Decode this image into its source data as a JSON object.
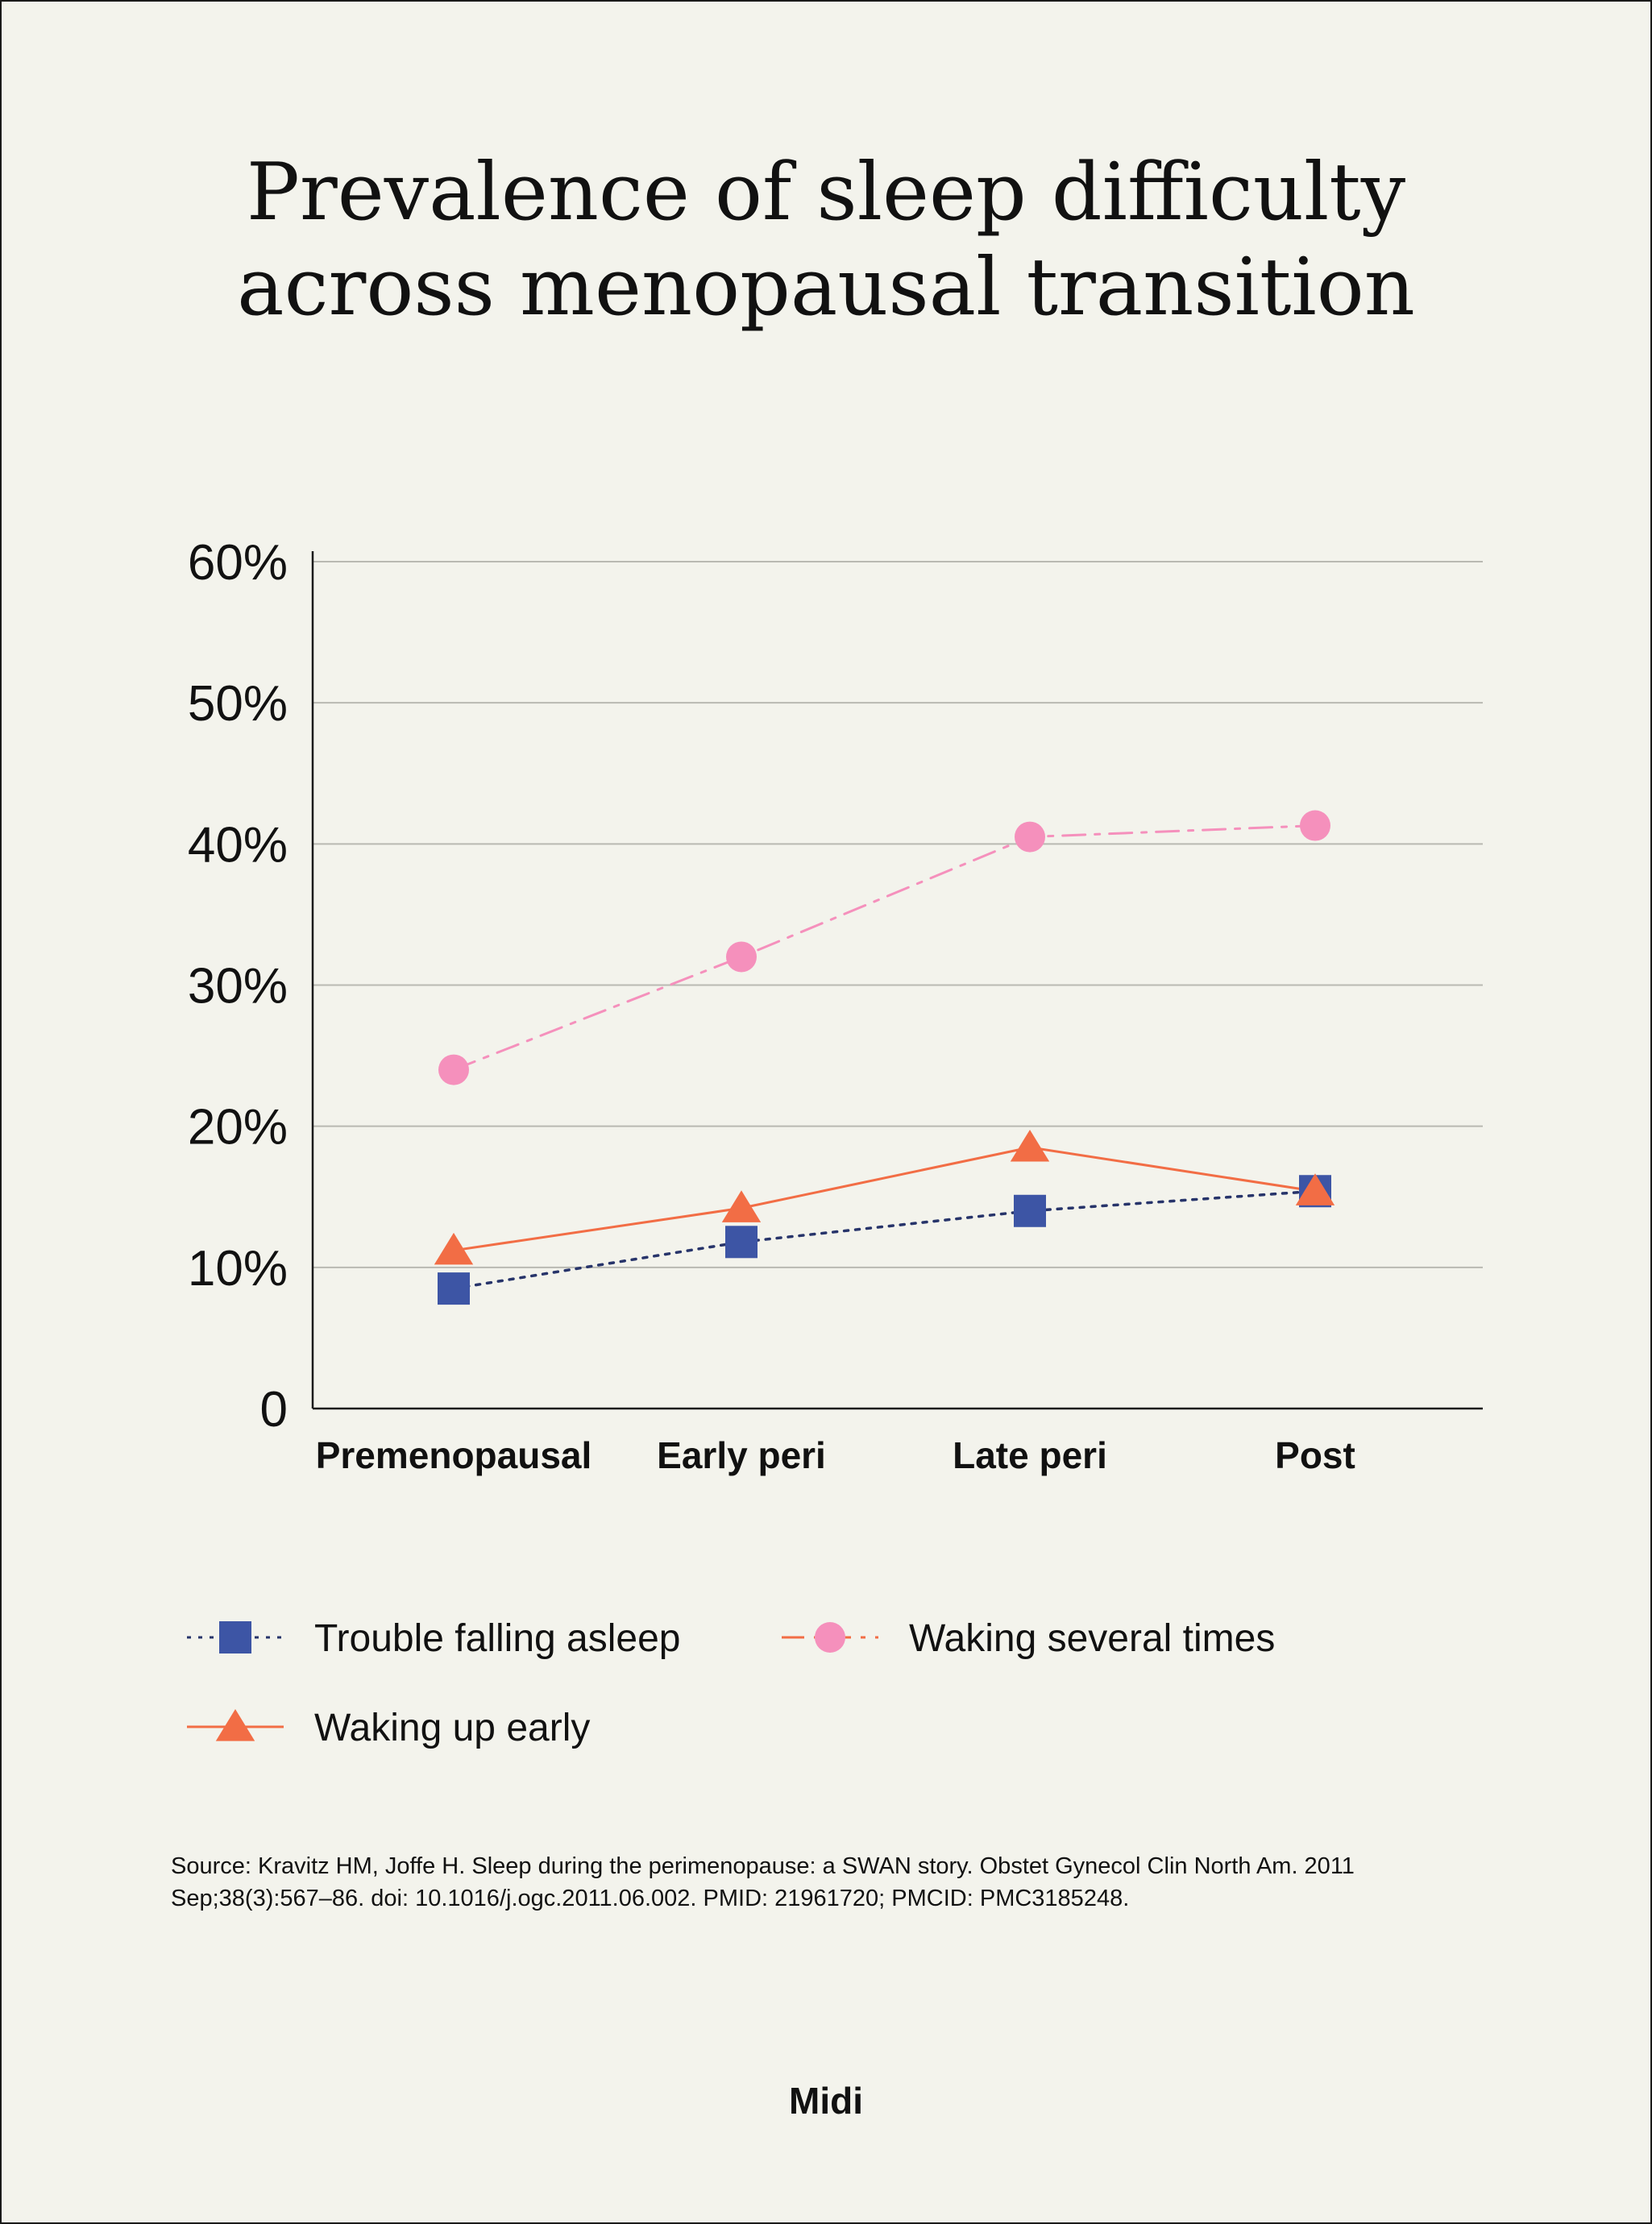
{
  "title": {
    "line1": "Prevalence of sleep difficulty",
    "line2": "across menopausal transition"
  },
  "source": "Source: Kravitz HM, Joffe H. Sleep during the perimenopause: a SWAN story. Obstet Gynecol Clin North Am. 2011 Sep;38(3):567–86. doi: 10.1016/j.ogc.2011.06.002. PMID: 21961720; PMCID: PMC3185248.",
  "brand": "Midi",
  "colors": {
    "background": "#f3f3ec",
    "trouble_falling_asleep": "#3d55a5",
    "trouble_line": "#27346a",
    "waking_several_times": "#f590bc",
    "waking_up_early": "#f26d45"
  },
  "chart_data": {
    "type": "line",
    "title": "Prevalence of sleep difficulty across menopausal transition",
    "xlabel": "",
    "ylabel": "",
    "categories": [
      "Premenopausal",
      "Early peri",
      "Late peri",
      "Post"
    ],
    "y_tick_labels": [
      "0",
      "10%",
      "20%",
      "30%",
      "40%",
      "50%",
      "60%"
    ],
    "y_tick_values": [
      0,
      10,
      20,
      30,
      40,
      50,
      60
    ],
    "ylim": [
      0,
      60
    ],
    "grid": true,
    "legend_position": "bottom",
    "series": [
      {
        "name": "Trouble falling asleep",
        "values": [
          8.5,
          11.8,
          14,
          15.4
        ],
        "marker": "square",
        "line_style": "dotted",
        "color": "#3d55a5",
        "line_color": "#27346a"
      },
      {
        "name": "Waking several times",
        "values": [
          24,
          32,
          40.5,
          41.3
        ],
        "marker": "circle",
        "line_style": "dash-dot",
        "color": "#f590bc",
        "line_color": "#f590bc"
      },
      {
        "name": "Waking up early",
        "values": [
          11.2,
          14.2,
          18.5,
          15.4
        ],
        "marker": "triangle",
        "line_style": "solid",
        "color": "#f26d45",
        "line_color": "#f26d45"
      }
    ]
  }
}
